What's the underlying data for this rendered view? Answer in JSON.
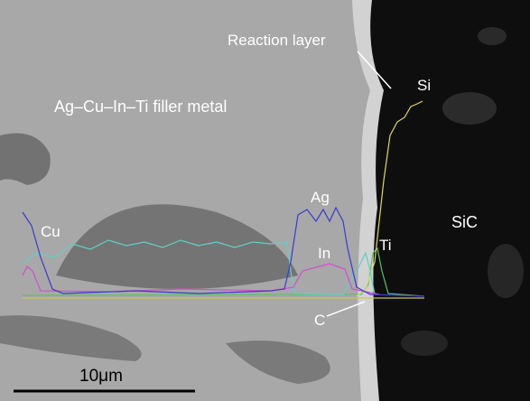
{
  "labels": {
    "reaction_layer": "Reaction layer",
    "si": "Si",
    "filler_metal": "Ag–Cu–In–Ti filler metal",
    "cu": "Cu",
    "ag": "Ag",
    "in": "In",
    "ti": "Ti",
    "sic": "SiC",
    "c": "C"
  },
  "scale_bar": "10μm"
}
